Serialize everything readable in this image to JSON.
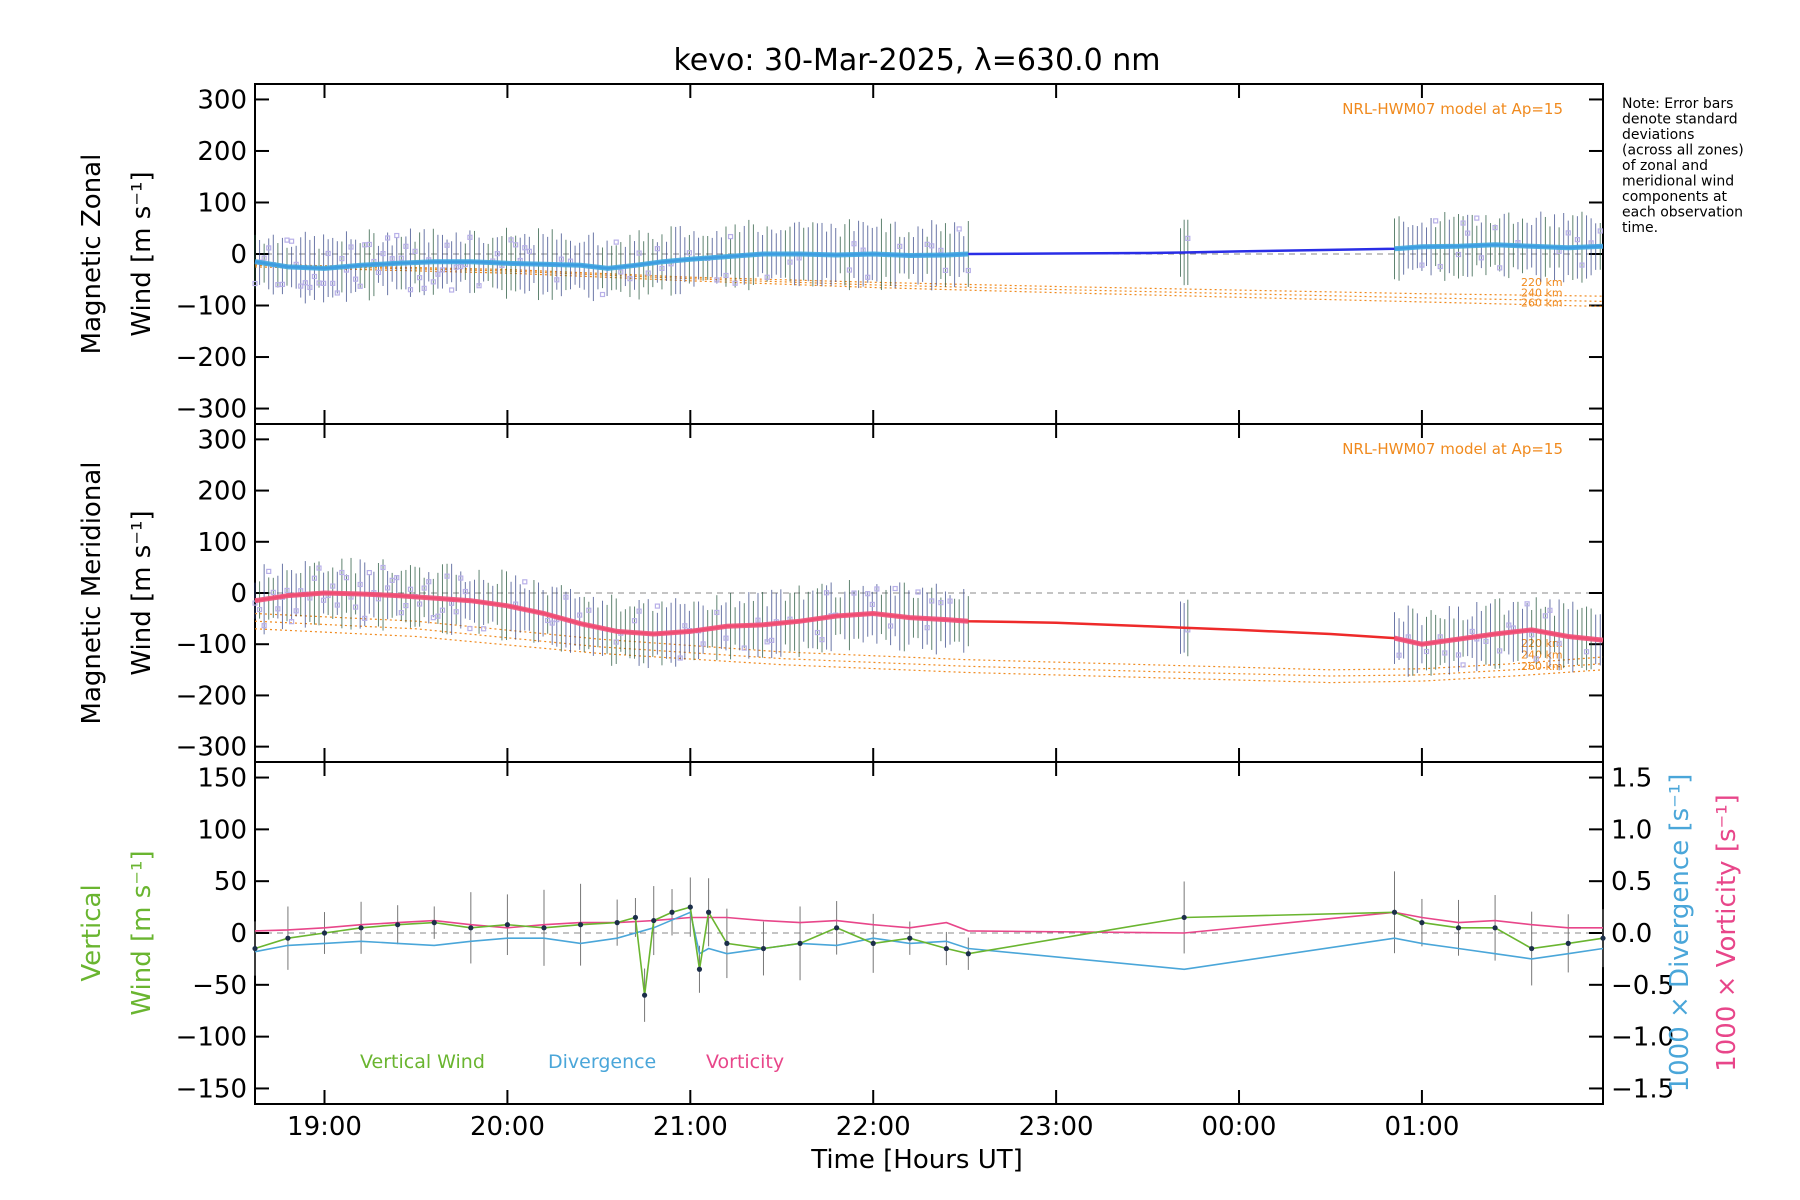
{
  "chart_data": {
    "title": "kevo: 30-Mar-2025, λ=630.0 nm",
    "xlabel": "Time [Hours UT]",
    "xlim": [
      18.62,
      25.99
    ],
    "xticks": [
      19,
      20,
      21,
      22,
      23,
      24,
      25
    ],
    "xticklabels": [
      "19:00",
      "20:00",
      "21:00",
      "22:00",
      "23:00",
      "00:00",
      "01:00"
    ],
    "note": [
      "Note: Error bars",
      "denote standard",
      "deviations",
      "(across all zones)",
      "of zonal and",
      "meridional wind",
      "components at",
      "each observation",
      "time."
    ],
    "colors": {
      "zonal_line": "#2a2ee6",
      "zonal_mean": "#3fa8e0",
      "meridional_line": "#ee2a2a",
      "meridional_mean": "#f0507a",
      "model": "#f08a1e",
      "zone_points": "#b8b0e8",
      "vertical": "#6ab530",
      "divergence": "#4aa6d9",
      "vorticity": "#e8468a"
    },
    "panels": [
      {
        "type": "line",
        "name": "zonal",
        "ylabel_top": "Magnetic Zonal",
        "ylabel_bottom": "Wind [m s⁻¹]",
        "ylim": [
          -330,
          330
        ],
        "yticks": [
          300,
          200,
          100,
          0,
          -100,
          -200,
          -300
        ],
        "yticklabels": [
          "300",
          "200",
          "100",
          "0",
          "−100",
          "−200",
          "−300"
        ],
        "model_label": "NRL-HWM07 model at Ap=15",
        "altitudes": [
          "220 km",
          "240 km",
          "260 km"
        ],
        "model_series": [
          {
            "name": "220 km",
            "x": [
              18.62,
              20.0,
              21.0,
              22.0,
              23.0,
              24.0,
              25.0,
              25.99
            ],
            "y": [
              -20,
              -30,
              -45,
              -55,
              -63,
              -70,
              -77,
              -82
            ]
          },
          {
            "name": "240 km",
            "x": [
              18.62,
              20.0,
              21.0,
              22.0,
              23.0,
              24.0,
              25.0,
              25.99
            ],
            "y": [
              -22,
              -33,
              -48,
              -60,
              -69,
              -77,
              -85,
              -92
            ]
          },
          {
            "name": "260 km",
            "x": [
              18.62,
              20.0,
              21.0,
              22.0,
              23.0,
              24.0,
              25.0,
              25.99
            ],
            "y": [
              -25,
              -37,
              -52,
              -65,
              -75,
              -84,
              -93,
              -102
            ]
          }
        ],
        "series": [
          {
            "name": "zonal wind",
            "x": [
              18.62,
              18.8,
              19.0,
              19.2,
              19.4,
              19.6,
              19.8,
              20.0,
              20.2,
              20.4,
              20.55,
              20.7,
              20.85,
              21.0,
              21.2,
              21.4,
              21.6,
              21.8,
              22.0,
              22.2,
              22.4,
              22.52,
              23.0,
              23.5,
              23.7,
              24.0,
              24.5,
              24.85,
              25.0,
              25.2,
              25.4,
              25.6,
              25.8,
              25.99
            ],
            "y": [
              -15,
              -25,
              -28,
              -22,
              -18,
              -15,
              -15,
              -18,
              -20,
              -22,
              -28,
              -22,
              -15,
              -10,
              -5,
              0,
              0,
              -2,
              0,
              -3,
              -2,
              0,
              1,
              2,
              3,
              5,
              8,
              10,
              14,
              15,
              18,
              15,
              12,
              15
            ]
          }
        ]
      },
      {
        "type": "line",
        "name": "meridional",
        "ylabel_top": "Magnetic Meridional",
        "ylabel_bottom": "Wind [m s⁻¹]",
        "ylim": [
          -330,
          330
        ],
        "yticks": [
          300,
          200,
          100,
          0,
          -100,
          -200,
          -300
        ],
        "yticklabels": [
          "300",
          "200",
          "100",
          "0",
          "−100",
          "−200",
          "−300"
        ],
        "model_label": "NRL-HWM07 model at Ap=15",
        "altitudes": [
          "220 km",
          "240 km",
          "260 km"
        ],
        "model_series": [
          {
            "name": "220 km",
            "x": [
              18.62,
              19.5,
              20.5,
              21.5,
              22.5,
              23.5,
              24.5,
              25.0,
              25.5,
              25.99
            ],
            "y": [
              -40,
              -55,
              -90,
              -115,
              -130,
              -140,
              -150,
              -148,
              -138,
              -125
            ]
          },
          {
            "name": "240 km",
            "x": [
              18.62,
              19.5,
              20.5,
              21.5,
              22.5,
              23.5,
              24.5,
              25.0,
              25.5,
              25.99
            ],
            "y": [
              -55,
              -70,
              -105,
              -128,
              -143,
              -153,
              -162,
              -160,
              -150,
              -138
            ]
          },
          {
            "name": "260 km",
            "x": [
              18.62,
              19.5,
              20.5,
              21.5,
              22.5,
              23.5,
              24.5,
              25.0,
              25.5,
              25.99
            ],
            "y": [
              -70,
              -85,
              -118,
              -140,
              -155,
              -165,
              -175,
              -172,
              -162,
              -150
            ]
          }
        ],
        "series": [
          {
            "name": "meridional wind",
            "x": [
              18.62,
              18.8,
              19.0,
              19.2,
              19.4,
              19.6,
              19.8,
              20.0,
              20.2,
              20.4,
              20.6,
              20.8,
              21.0,
              21.2,
              21.4,
              21.6,
              21.8,
              22.0,
              22.2,
              22.4,
              22.52,
              23.0,
              23.5,
              23.7,
              24.0,
              24.5,
              24.85,
              25.0,
              25.2,
              25.4,
              25.6,
              25.8,
              25.99
            ],
            "y": [
              -15,
              -5,
              0,
              -2,
              -5,
              -10,
              -15,
              -25,
              -40,
              -60,
              -75,
              -80,
              -75,
              -65,
              -62,
              -55,
              -45,
              -40,
              -48,
              -52,
              -55,
              -58,
              -65,
              -68,
              -72,
              -80,
              -88,
              -100,
              -90,
              -80,
              -72,
              -85,
              -92
            ]
          }
        ]
      },
      {
        "type": "line",
        "name": "vertical",
        "ylabel_top": "Vertical",
        "ylabel_bottom": "Wind [m s⁻¹]",
        "ylim": [
          -165,
          165
        ],
        "yticks": [
          150,
          100,
          50,
          0,
          -50,
          -100,
          -150
        ],
        "yticklabels": [
          "150",
          "100",
          "50",
          "0",
          "−50",
          "−100",
          "−150"
        ],
        "ylabel_right_1": "1000 × Divergence [s⁻¹]",
        "ylabel_right_2": "1000 × Vorticity [s⁻¹]",
        "ylim_right": [
          -1.65,
          1.65
        ],
        "yticks_right": [
          1.5,
          1.0,
          0.5,
          0.0,
          -0.5,
          -1.0,
          -1.5
        ],
        "yticklabels_right": [
          "1.5",
          "1.0",
          "0.5",
          "0.0",
          "−0.5",
          "−1.0",
          "−1.5"
        ],
        "legend": [
          "Vertical Wind",
          "Divergence",
          "Vorticity"
        ],
        "series": [
          {
            "name": "Vertical Wind",
            "x": [
              18.62,
              18.8,
              19.0,
              19.2,
              19.4,
              19.6,
              19.8,
              20.0,
              20.2,
              20.4,
              20.6,
              20.7,
              20.75,
              20.8,
              20.9,
              21.0,
              21.05,
              21.1,
              21.2,
              21.4,
              21.6,
              21.8,
              22.0,
              22.2,
              22.4,
              22.52,
              23.7,
              24.85,
              25.0,
              25.2,
              25.4,
              25.6,
              25.8,
              25.99
            ],
            "y": [
              -15,
              -5,
              0,
              5,
              8,
              10,
              5,
              8,
              5,
              8,
              10,
              15,
              -60,
              12,
              20,
              25,
              -35,
              20,
              -10,
              -15,
              -10,
              5,
              -10,
              -5,
              -15,
              -20,
              15,
              20,
              10,
              5,
              5,
              -15,
              -10,
              -5
            ]
          },
          {
            "name": "Divergence",
            "x": [
              18.62,
              18.8,
              19.0,
              19.2,
              19.4,
              19.6,
              19.8,
              20.0,
              20.2,
              20.4,
              20.6,
              20.8,
              21.0,
              21.05,
              21.1,
              21.2,
              21.4,
              21.6,
              21.8,
              22.0,
              22.2,
              22.4,
              22.52,
              23.7,
              24.85,
              25.0,
              25.2,
              25.4,
              25.6,
              25.8,
              25.99
            ],
            "y": [
              -0.18,
              -0.12,
              -0.1,
              -0.08,
              -0.1,
              -0.12,
              -0.08,
              -0.05,
              -0.05,
              -0.1,
              -0.05,
              0.05,
              0.2,
              -0.2,
              -0.15,
              -0.2,
              -0.15,
              -0.1,
              -0.12,
              -0.05,
              -0.1,
              -0.08,
              -0.15,
              -0.35,
              -0.05,
              -0.1,
              -0.15,
              -0.2,
              -0.25,
              -0.2,
              -0.15
            ]
          },
          {
            "name": "Vorticity",
            "x": [
              18.62,
              18.8,
              19.0,
              19.2,
              19.4,
              19.6,
              19.8,
              20.0,
              20.2,
              20.4,
              20.6,
              20.8,
              21.0,
              21.2,
              21.4,
              21.6,
              21.8,
              22.0,
              22.2,
              22.4,
              22.52,
              23.7,
              24.85,
              25.0,
              25.2,
              25.4,
              25.6,
              25.8,
              25.99
            ],
            "y": [
              0.02,
              0.03,
              0.05,
              0.08,
              0.1,
              0.12,
              0.08,
              0.05,
              0.08,
              0.1,
              0.1,
              0.12,
              0.15,
              0.15,
              0.12,
              0.1,
              0.12,
              0.08,
              0.05,
              0.1,
              0.02,
              0.0,
              0.2,
              0.15,
              0.1,
              0.12,
              0.08,
              0.05,
              0.05
            ]
          }
        ]
      }
    ]
  }
}
